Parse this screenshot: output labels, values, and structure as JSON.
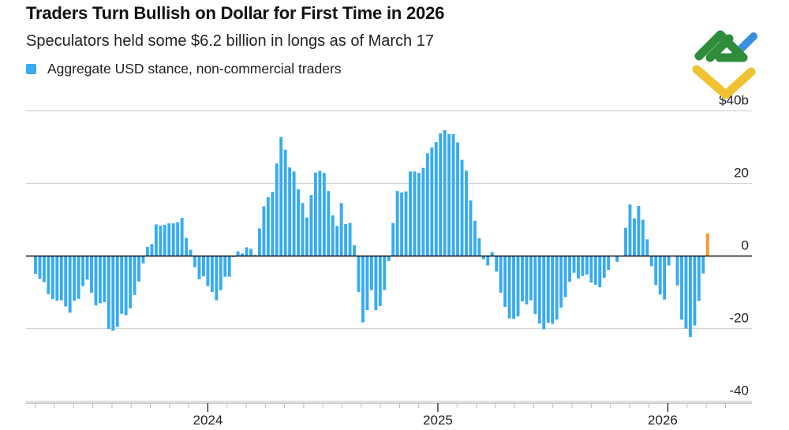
{
  "chart_data": {
    "type": "bar",
    "title": "Traders Turn Bullish on Dollar for First Time in 2026",
    "subtitle": "Speculators held some $6.2 billion in longs as of March 17",
    "legend": [
      {
        "label": "Aggregate USD stance, non-commercial traders",
        "color": "#38abf0"
      }
    ],
    "xlabel": "",
    "ylabel": "",
    "ylim": [
      -40,
      40
    ],
    "grid": true,
    "yticks": [
      {
        "value": 40,
        "label": "$40b"
      },
      {
        "value": 20,
        "label": "20"
      },
      {
        "value": 0,
        "label": "0"
      },
      {
        "value": -20,
        "label": "-20"
      },
      {
        "value": -40,
        "label": "-40"
      }
    ],
    "xticks": [
      {
        "label": "2024",
        "index": 40
      },
      {
        "label": "2025",
        "index": 93.4
      },
      {
        "label": "2026",
        "index": 145.6
      }
    ],
    "series_color": "#38abf0",
    "highlight_color": "#f29a2e",
    "highlight_last": true,
    "values": [
      -4.9,
      -6.3,
      -7.2,
      -10.5,
      -11.9,
      -12.3,
      -12.2,
      -13.9,
      -15.6,
      -12.3,
      -11.8,
      -8.3,
      -6.5,
      -10.1,
      -13.6,
      -13.0,
      -12.7,
      -20.1,
      -20.6,
      -19.5,
      -15.9,
      -16.3,
      -14.4,
      -10.7,
      -7.0,
      -2.0,
      2.5,
      3.3,
      8.7,
      8.4,
      8.6,
      9.0,
      9.0,
      9.3,
      10.5,
      5.0,
      1.7,
      -3.1,
      -6.4,
      -5.6,
      -8.3,
      -9.9,
      -12.2,
      -9.4,
      -5.7,
      -5.7,
      -0.3,
      1.3,
      0.7,
      2.4,
      2.0,
      0.3,
      7.6,
      13.7,
      16.2,
      17.7,
      25.5,
      32.8,
      29.3,
      24.4,
      23.3,
      18.4,
      14.6,
      10.6,
      16.8,
      23.0,
      23.5,
      22.9,
      17.9,
      11.2,
      8.3,
      14.6,
      8.8,
      9.1,
      3.0,
      -9.9,
      -18.3,
      -14.9,
      -9.4,
      -14.9,
      -13.8,
      -9.4,
      -1.4,
      9.1,
      17.9,
      17.5,
      17.8,
      23.3,
      23.3,
      22.9,
      24.3,
      28.3,
      29.9,
      31.4,
      33.8,
      34.7,
      33.6,
      33.6,
      31.3,
      26.5,
      23.5,
      15.3,
      9.7,
      4.9,
      -0.9,
      -2.6,
      1.1,
      -4.3,
      -10.1,
      -14.0,
      -17.2,
      -17.3,
      -16.6,
      -12.5,
      -13.3,
      -12.2,
      -16.0,
      -18.6,
      -20.2,
      -18.4,
      -18.7,
      -17.5,
      -14.2,
      -11.3,
      -7.1,
      -4.6,
      -6.2,
      -5.5,
      -5.1,
      -7.3,
      -7.9,
      -8.6,
      -6.0,
      -3.8,
      0,
      -1.6,
      0,
      7.8,
      14.2,
      10.4,
      13.8,
      10.0,
      4.6,
      -2.8,
      -8.0,
      -10.6,
      -12.0,
      -2.6,
      0,
      -8.1,
      -17.5,
      -20.0,
      -22.3,
      -19.1,
      -12.4,
      -4.8,
      6.2
    ]
  }
}
